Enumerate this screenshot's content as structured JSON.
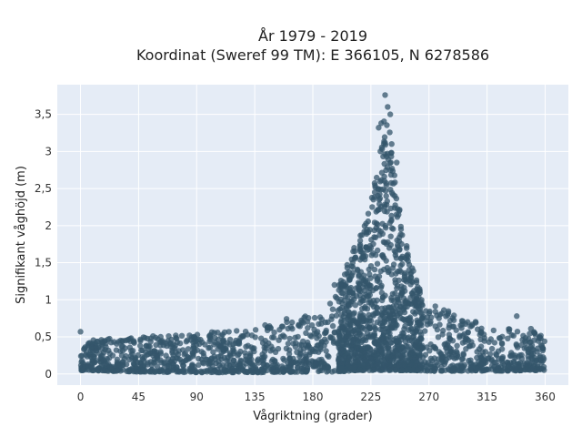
{
  "chart_data": {
    "type": "scatter",
    "title": "År 1979 - 2019",
    "subtitle": "Koordinat (Sweref 99 TM): E 366105, N 6278586",
    "xlabel": "Vågriktning (grader)",
    "ylabel": "Signifikant våghöjd (m)",
    "xlim": [
      -18,
      378
    ],
    "ylim": [
      -0.15,
      3.9
    ],
    "x_ticks": [
      0,
      45,
      90,
      135,
      180,
      225,
      270,
      315,
      360
    ],
    "y_ticks": [
      0,
      0.5,
      1,
      1.5,
      2,
      2.5,
      3,
      3.5
    ],
    "y_tick_labels": [
      "0",
      "0,5",
      "1",
      "1,5",
      "2",
      "2,5",
      "3",
      "3,5"
    ],
    "x_tick_labels": [
      "0",
      "45",
      "90",
      "135",
      "180",
      "225",
      "270",
      "315",
      "360"
    ],
    "grid": true,
    "marker_color": "#34566b",
    "plot_background": "#e5ecf6",
    "series": [
      {
        "points_note": "",
        "envelope_x": [
          0,
          45,
          90,
          135,
          180,
          200,
          215,
          225,
          232,
          236,
          240,
          245,
          255,
          270,
          315,
          360
        ],
        "envelope_upper_y": [
          0.45,
          0.5,
          0.55,
          0.62,
          0.85,
          1.3,
          1.8,
          2.3,
          3.0,
          3.6,
          3.3,
          2.5,
          1.5,
          0.95,
          0.65,
          0.55
        ],
        "envelope_lower_y": [
          0.05,
          0.03,
          0.02,
          0.02,
          0.03,
          0.03,
          0.05,
          0.05,
          0.05,
          0.05,
          0.05,
          0.05,
          0.05,
          0.04,
          0.04,
          0.05
        ],
        "outliers": [
          {
            "x": 236,
            "y": 3.76
          },
          {
            "x": 238,
            "y": 3.6
          },
          {
            "x": 233,
            "y": 3.38
          },
          {
            "x": 240,
            "y": 3.5
          },
          {
            "x": 231,
            "y": 3.32
          },
          {
            "x": 245,
            "y": 2.85
          },
          {
            "x": 226,
            "y": 2.25
          },
          {
            "x": 228,
            "y": 2.45
          },
          {
            "x": 222,
            "y": 1.95
          },
          {
            "x": 212,
            "y": 1.7
          },
          {
            "x": 0,
            "y": 0.57
          },
          {
            "x": 338,
            "y": 0.78
          },
          {
            "x": 349,
            "y": 0.61
          },
          {
            "x": 285,
            "y": 0.82
          },
          {
            "x": 300,
            "y": 0.7
          }
        ]
      }
    ]
  }
}
